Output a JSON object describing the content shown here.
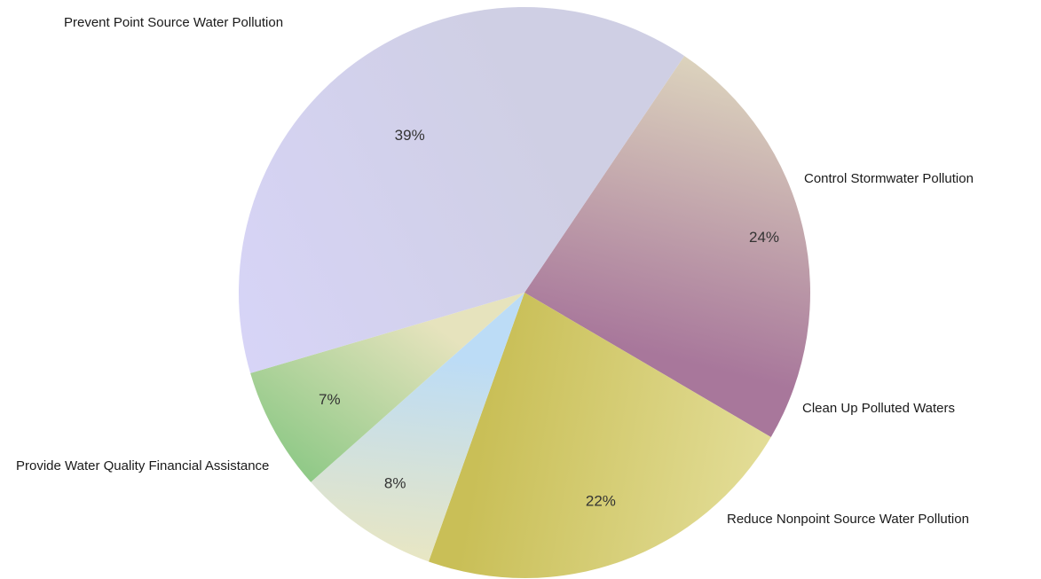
{
  "chart_data": {
    "type": "pie",
    "slices": [
      {
        "label": "Prevent Point Source Water Pollution",
        "value": 24,
        "value_label": "24%",
        "color_light": "#dcd3bd",
        "color_dark": "#a8779b"
      },
      {
        "label": "Control Stormwater Pollution",
        "value": 22,
        "value_label": "22%",
        "color_light": "#e3dd97",
        "color_dark": "#c9bf57"
      },
      {
        "label": "Clean Up Polluted Waters",
        "value": 8,
        "value_label": "8%",
        "color_light": "#e8e6c3",
        "color_dark": "#bcdcf6"
      },
      {
        "label": "Reduce Nonpoint Source Water Pollution",
        "value": 7,
        "value_label": "7%",
        "color_light": "#8fc987",
        "color_dark": "#e6e3bd"
      },
      {
        "label": "Provide Water Quality Financial Assistance",
        "value": 39,
        "value_label": "39%",
        "color_light": "#d7d4f7",
        "color_dark": "#cfcfe4"
      }
    ]
  }
}
